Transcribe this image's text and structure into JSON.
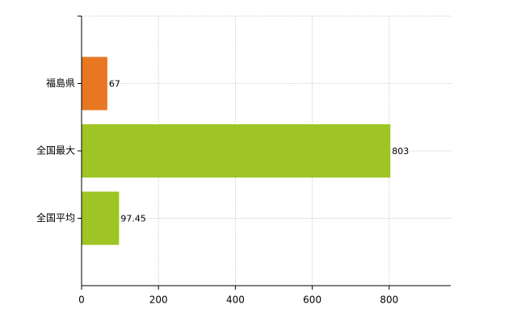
{
  "chart_data": {
    "type": "barh",
    "categories": [
      "福島県",
      "全国最大",
      "全国平均"
    ],
    "values": [
      67,
      803,
      97.45
    ],
    "colors": [
      "#e87722",
      "#9ec524",
      "#9ec524"
    ],
    "xlim": [
      0,
      960
    ],
    "xticks": [
      0,
      200,
      400,
      600,
      800
    ],
    "grid": true
  }
}
